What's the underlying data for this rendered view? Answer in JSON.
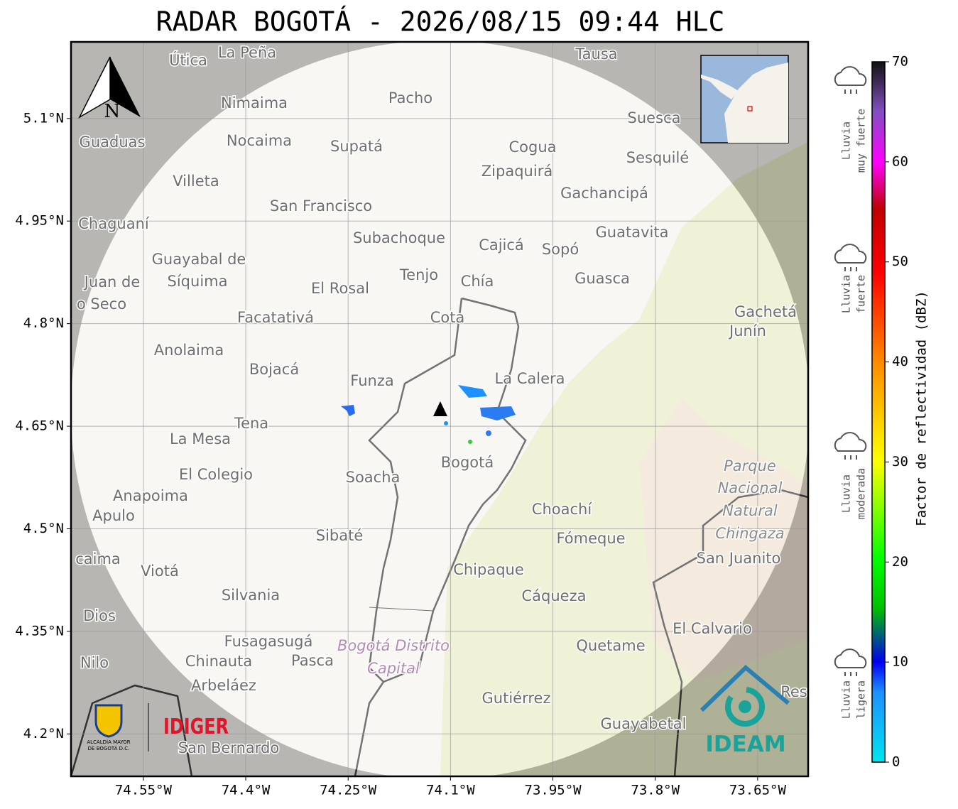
{
  "title": "RADAR BOGOTÁ - 2026/08/15 09:44 HLC",
  "map": {
    "lon_range": [
      -74.656,
      -73.576
    ],
    "lat_range": [
      4.138,
      5.212
    ],
    "lon_ticks": [
      {
        "value": -74.55,
        "label": "74.55°W"
      },
      {
        "value": -74.4,
        "label": "74.4°W"
      },
      {
        "value": -74.25,
        "label": "74.25°W"
      },
      {
        "value": -74.1,
        "label": "74.1°W"
      },
      {
        "value": -73.95,
        "label": "73.95°W"
      },
      {
        "value": -73.8,
        "label": "73.8°W"
      },
      {
        "value": -73.65,
        "label": "73.65°W"
      }
    ],
    "lat_ticks": [
      {
        "value": 5.1,
        "label": "5.1°N"
      },
      {
        "value": 4.95,
        "label": "4.95°N"
      },
      {
        "value": 4.8,
        "label": "4.8°N"
      },
      {
        "value": 4.65,
        "label": "4.65°N"
      },
      {
        "value": 4.5,
        "label": "4.5°N"
      },
      {
        "value": 4.35,
        "label": "4.35°N"
      },
      {
        "value": 4.2,
        "label": "4.2°N"
      }
    ],
    "north_label": "N",
    "places": [
      "La Peña",
      "Útica",
      "Tausa",
      "Pacho",
      "Nimaima",
      "Guaduas",
      "Nocaima",
      "Supatá",
      "Cogua",
      "Suesca",
      "Sesquilé",
      "Zipaquirá",
      "Villeta",
      "Gachancipá",
      "San Francisco",
      "Chaguaní",
      "Guatavita",
      "Subachoque",
      "Cajicá",
      "Sopó",
      "Guayabal de",
      "Síquima",
      "Tenjo",
      "Chía",
      "Guasca",
      "El Rosal",
      "Juan de",
      "o Seco",
      "Facatativá",
      "Cota",
      "Gachetá",
      "Junín",
      "Anolaima",
      "Bojacá",
      "Funza",
      "La Calera",
      "Tena",
      "La Mesa",
      "Bogotá",
      "Soacha",
      "El Colegio",
      "Parque",
      "Nacional",
      "Natural",
      "Chingaza",
      "Anapoima",
      "Apulo",
      "Choachí",
      "Fómeque",
      "Sibaté",
      "San Juanito",
      "caima",
      "Viotá",
      "Chipaque",
      "Silvania",
      "Cáqueza",
      "Dios",
      "El Calvario",
      "Fusagasugá",
      "Bogotá Distrito",
      "Capital",
      "Quetame",
      "Nilo",
      "Chinauta",
      "Pasca",
      "Arbeláez",
      "Gutiérrez",
      "Res",
      "Guayabetal",
      "San Bernardo"
    ]
  },
  "colorbar": {
    "label": "Factor de reflectividad (dBZ)",
    "range": [
      0,
      70
    ],
    "ticks": [
      0,
      10,
      20,
      30,
      40,
      50,
      60,
      70
    ],
    "intensity_labels": [
      [
        "Lluvia",
        "muy fuerte"
      ],
      [
        "Lluvia",
        "fuerte"
      ],
      [
        "Lluvia",
        "moderada"
      ],
      [
        "Lluvia",
        "ligera"
      ]
    ]
  },
  "logos": {
    "bogota": [
      "ALCALDÍA MAYOR",
      "DE BOGOTÁ D.C."
    ],
    "idiger": "IDIGER",
    "ideam": "IDEAM"
  }
}
